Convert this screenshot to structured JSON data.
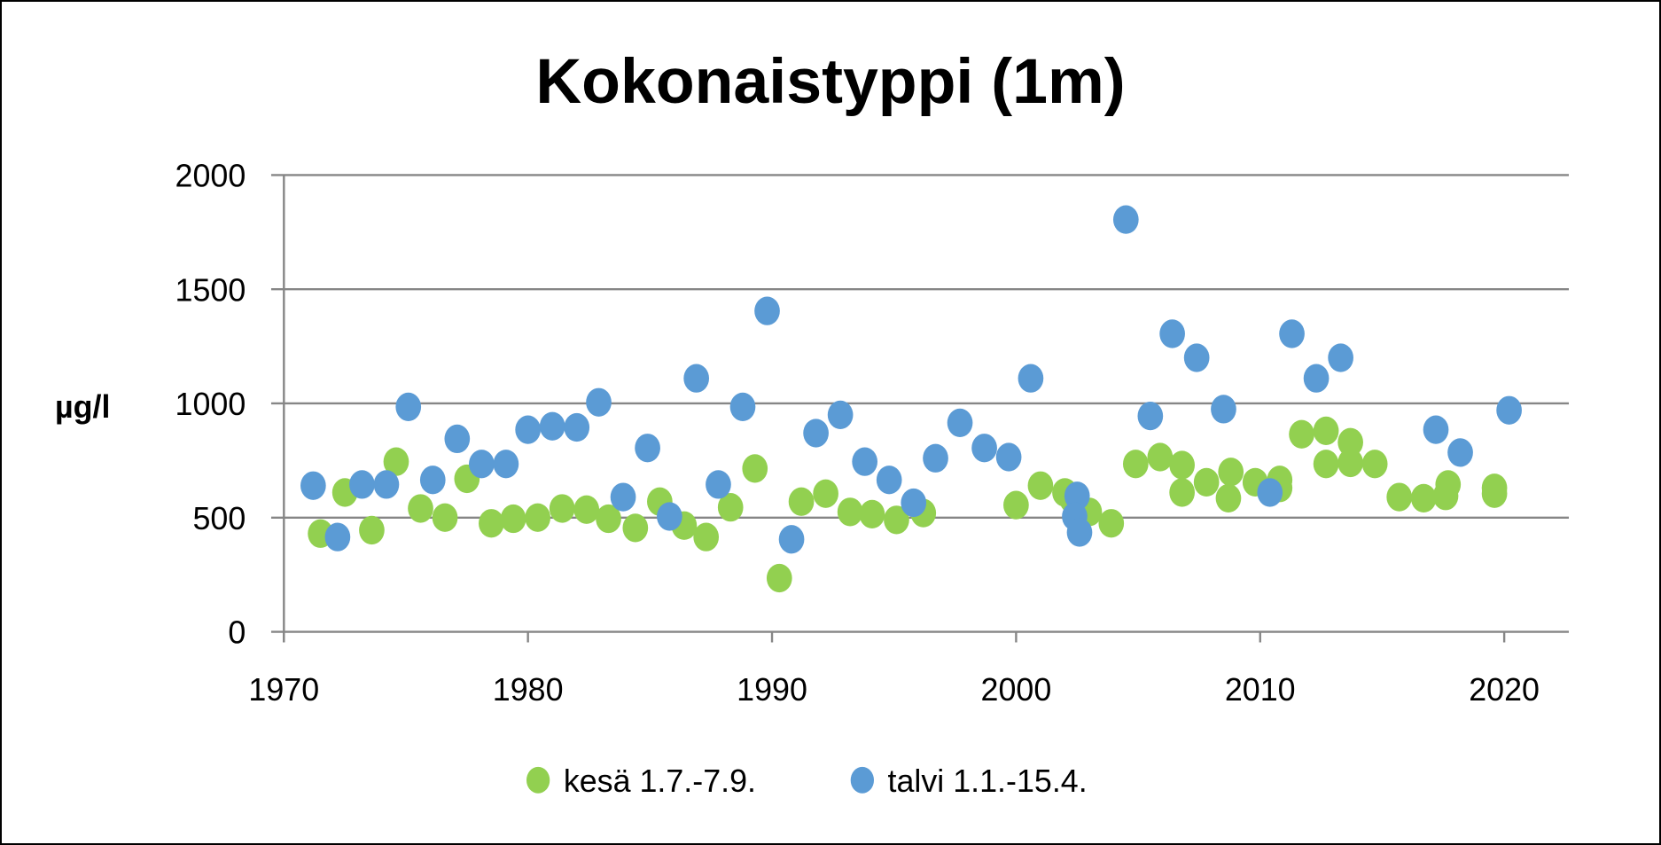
{
  "chart_data": {
    "type": "scatter",
    "title": "Kokonaistyppi (1m)",
    "xlabel": "",
    "ylabel": "µg/l",
    "xlim": [
      1970,
      2022.7
    ],
    "ylim": [
      0,
      2000
    ],
    "x_ticks": [
      "1970",
      "1980",
      "1990",
      "2000",
      "2010",
      "2020"
    ],
    "y_ticks": [
      "0",
      "500",
      "1000",
      "1500",
      "2000"
    ],
    "grid": "horizontal",
    "legend_position": "bottom",
    "series": [
      {
        "name": "kesä 1.7.-7.9.",
        "color": "#92D050",
        "points": [
          [
            1971.5,
            430
          ],
          [
            1972.5,
            610
          ],
          [
            1973.6,
            445
          ],
          [
            1974.6,
            745
          ],
          [
            1975.6,
            540
          ],
          [
            1976.6,
            500
          ],
          [
            1977.5,
            670
          ],
          [
            1978.5,
            475
          ],
          [
            1979.4,
            495
          ],
          [
            1980.4,
            500
          ],
          [
            1981.4,
            540
          ],
          [
            1982.4,
            535
          ],
          [
            1983.3,
            495
          ],
          [
            1984.4,
            455
          ],
          [
            1985.4,
            570
          ],
          [
            1986.4,
            465
          ],
          [
            1987.3,
            415
          ],
          [
            1988.3,
            545
          ],
          [
            1989.3,
            715
          ],
          [
            1990.3,
            235
          ],
          [
            1991.2,
            570
          ],
          [
            1992.2,
            605
          ],
          [
            1993.2,
            525
          ],
          [
            1994.1,
            515
          ],
          [
            1995.1,
            490
          ],
          [
            1996.2,
            520
          ],
          [
            2000.0,
            555
          ],
          [
            2001.0,
            640
          ],
          [
            2002.0,
            610
          ],
          [
            2002.3,
            580
          ],
          [
            2003.0,
            525
          ],
          [
            2003.9,
            475
          ],
          [
            2004.9,
            735
          ],
          [
            2005.9,
            765
          ],
          [
            2006.8,
            730
          ],
          [
            2006.8,
            610
          ],
          [
            2007.8,
            655
          ],
          [
            2008.7,
            585
          ],
          [
            2008.8,
            700
          ],
          [
            2009.8,
            655
          ],
          [
            2010.8,
            665
          ],
          [
            2010.8,
            630
          ],
          [
            2011.7,
            865
          ],
          [
            2012.7,
            880
          ],
          [
            2012.7,
            735
          ],
          [
            2013.7,
            830
          ],
          [
            2013.7,
            740
          ],
          [
            2014.7,
            735
          ],
          [
            2015.7,
            590
          ],
          [
            2016.7,
            585
          ],
          [
            2017.7,
            645
          ],
          [
            2017.6,
            595
          ],
          [
            2019.6,
            630
          ],
          [
            2019.6,
            605
          ]
        ]
      },
      {
        "name": "talvi 1.1.-15.4.",
        "color": "#5B9BD5",
        "points": [
          [
            1971.2,
            640
          ],
          [
            1972.2,
            415
          ],
          [
            1973.2,
            645
          ],
          [
            1974.2,
            645
          ],
          [
            1975.1,
            985
          ],
          [
            1976.1,
            665
          ],
          [
            1977.1,
            845
          ],
          [
            1978.1,
            735
          ],
          [
            1979.1,
            735
          ],
          [
            1980.0,
            885
          ],
          [
            1981.0,
            900
          ],
          [
            1982.0,
            895
          ],
          [
            1982.9,
            1005
          ],
          [
            1983.9,
            590
          ],
          [
            1984.9,
            805
          ],
          [
            1985.8,
            505
          ],
          [
            1986.9,
            1110
          ],
          [
            1987.8,
            645
          ],
          [
            1988.8,
            985
          ],
          [
            1989.8,
            1405
          ],
          [
            1990.8,
            405
          ],
          [
            1991.8,
            870
          ],
          [
            1992.8,
            950
          ],
          [
            1993.8,
            745
          ],
          [
            1994.8,
            665
          ],
          [
            1995.8,
            565
          ],
          [
            1996.7,
            760
          ],
          [
            1997.7,
            915
          ],
          [
            1998.7,
            805
          ],
          [
            1999.7,
            765
          ],
          [
            2000.6,
            1110
          ],
          [
            2002.5,
            595
          ],
          [
            2002.4,
            505
          ],
          [
            2002.6,
            435
          ],
          [
            2004.5,
            1805
          ],
          [
            2005.5,
            945
          ],
          [
            2006.4,
            1305
          ],
          [
            2007.4,
            1200
          ],
          [
            2008.5,
            975
          ],
          [
            2010.4,
            610
          ],
          [
            2011.3,
            1305
          ],
          [
            2012.3,
            1110
          ],
          [
            2013.3,
            1200
          ],
          [
            2017.2,
            885
          ],
          [
            2018.2,
            785
          ],
          [
            2020.2,
            970
          ]
        ]
      }
    ]
  }
}
